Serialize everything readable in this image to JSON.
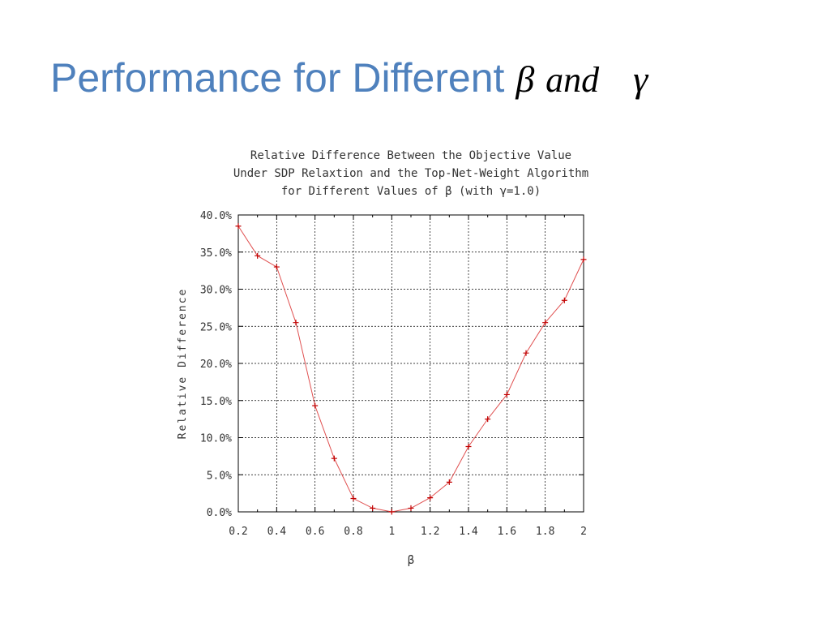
{
  "slide": {
    "title_text": "Performance for Different",
    "title_symbol_1": "β",
    "title_conjunction": "and",
    "title_symbol_2": "γ"
  },
  "chart_data": {
    "type": "line",
    "title_lines": [
      "Relative Difference Between the Objective Value",
      "Under SDP Relaxtion and the Top-Net-Weight Algorithm",
      "for Different Values of β (with γ=1.0)"
    ],
    "xlabel": "β",
    "ylabel": "Relative Difference",
    "x_ticks": [
      "0.2",
      "0.4",
      "0.6",
      "0.8",
      "1",
      "1.2",
      "1.4",
      "1.6",
      "1.8",
      "2"
    ],
    "y_ticks": [
      "0.0%",
      "5.0%",
      "10.0%",
      "15.0%",
      "20.0%",
      "25.0%",
      "30.0%",
      "35.0%",
      "40.0%"
    ],
    "xlim": [
      0.2,
      2.0
    ],
    "ylim": [
      0,
      40
    ],
    "grid": true,
    "series": [
      {
        "color": "#e05050",
        "marker": "+",
        "x": [
          0.2,
          0.3,
          0.4,
          0.5,
          0.6,
          0.7,
          0.8,
          0.9,
          1.0,
          1.1,
          1.2,
          1.3,
          1.4,
          1.5,
          1.6,
          1.7,
          1.8,
          1.9,
          2.0
        ],
        "y": [
          38.5,
          34.5,
          33.0,
          25.5,
          14.3,
          7.2,
          1.8,
          0.5,
          0.0,
          0.5,
          1.9,
          4.0,
          8.8,
          12.5,
          15.8,
          21.4,
          25.5,
          28.5,
          34.0
        ]
      }
    ]
  }
}
